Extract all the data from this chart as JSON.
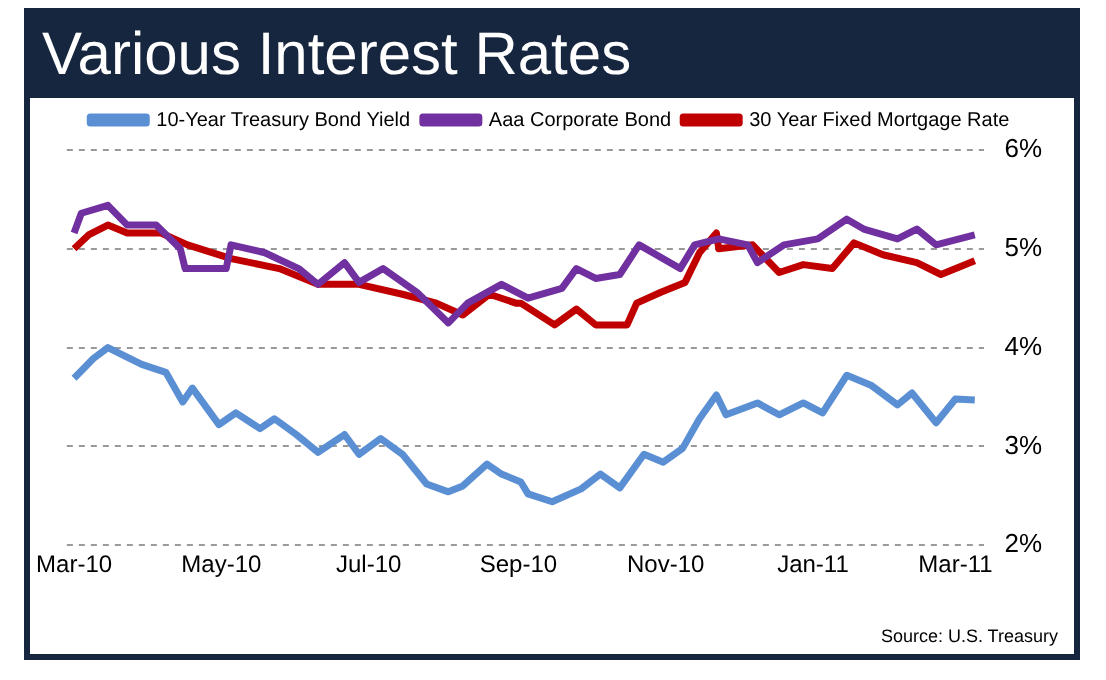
{
  "chart_data": {
    "type": "line",
    "title": "Various Interest Rates",
    "series": [
      {
        "name": "10-Year Treasury Bond Yield",
        "color": "#5b8fd4",
        "x": [
          "2010-03-01",
          "2010-03-09",
          "2010-03-15",
          "2010-03-29",
          "2010-04-08",
          "2010-04-15",
          "2010-04-19",
          "2010-04-30",
          "2010-05-07",
          "2010-05-17",
          "2010-05-23",
          "2010-06-01",
          "2010-06-10",
          "2010-06-21",
          "2010-06-27",
          "2010-07-06",
          "2010-07-15",
          "2010-07-25",
          "2010-08-03",
          "2010-08-09",
          "2010-08-19",
          "2010-08-25",
          "2010-09-02",
          "2010-09-05",
          "2010-09-15",
          "2010-09-27",
          "2010-10-05",
          "2010-10-13",
          "2010-10-23",
          "2010-10-31",
          "2010-11-08",
          "2010-11-15",
          "2010-11-22",
          "2010-11-26",
          "2010-12-09",
          "2010-12-18",
          "2010-12-28",
          "2011-01-05",
          "2011-01-15",
          "2011-01-25",
          "2011-02-05",
          "2011-02-11",
          "2011-02-21",
          "2011-03-01",
          "2011-03-09"
        ],
        "values": [
          3.69,
          3.89,
          4.0,
          3.83,
          3.75,
          3.45,
          3.59,
          3.22,
          3.34,
          3.18,
          3.28,
          3.12,
          2.94,
          3.12,
          2.92,
          3.08,
          2.92,
          2.62,
          2.54,
          2.6,
          2.82,
          2.72,
          2.64,
          2.52,
          2.44,
          2.57,
          2.72,
          2.58,
          2.92,
          2.84,
          2.98,
          3.28,
          3.52,
          3.32,
          3.44,
          3.32,
          3.44,
          3.34,
          3.72,
          3.62,
          3.42,
          3.54,
          3.24,
          3.48,
          3.47
        ]
      },
      {
        "name": "Aaa Corporate Bond",
        "color": "#7030a0",
        "x": [
          "2010-03-01",
          "2010-03-04",
          "2010-03-15",
          "2010-03-23",
          "2010-04-04",
          "2010-04-14",
          "2010-04-16",
          "2010-05-03",
          "2010-05-05",
          "2010-05-19",
          "2010-06-02",
          "2010-06-10",
          "2010-06-21",
          "2010-06-27",
          "2010-07-07",
          "2010-07-21",
          "2010-08-03",
          "2010-08-11",
          "2010-08-25",
          "2010-09-05",
          "2010-09-19",
          "2010-09-25",
          "2010-10-03",
          "2010-10-13",
          "2010-10-21",
          "2010-11-07",
          "2010-11-13",
          "2010-11-23",
          "2010-12-05",
          "2010-12-09",
          "2010-12-20",
          "2011-01-03",
          "2011-01-15",
          "2011-01-22",
          "2011-02-05",
          "2011-02-13",
          "2011-02-21",
          "2011-03-09"
        ],
        "values": [
          5.16,
          5.36,
          5.44,
          5.24,
          5.24,
          5.0,
          4.8,
          4.8,
          5.04,
          4.96,
          4.8,
          4.64,
          4.86,
          4.66,
          4.8,
          4.56,
          4.25,
          4.45,
          4.64,
          4.5,
          4.6,
          4.8,
          4.7,
          4.74,
          5.04,
          4.8,
          5.04,
          5.1,
          5.04,
          4.86,
          5.04,
          5.1,
          5.3,
          5.2,
          5.1,
          5.2,
          5.04,
          5.14
        ]
      },
      {
        "name": "30 Year Fixed Mortgage Rate",
        "color": "#c00000",
        "x": [
          "2010-03-01",
          "2010-03-07",
          "2010-03-15",
          "2010-03-23",
          "2010-04-06",
          "2010-04-17",
          "2010-05-05",
          "2010-05-25",
          "2010-06-10",
          "2010-06-27",
          "2010-07-15",
          "2010-07-29",
          "2010-08-09",
          "2010-08-20",
          "2010-08-31",
          "2010-09-02",
          "2010-09-16",
          "2010-09-25",
          "2010-10-03",
          "2010-10-16",
          "2010-10-20",
          "2010-10-30",
          "2010-11-09",
          "2010-11-15",
          "2010-11-22",
          "2010-11-23",
          "2010-12-07",
          "2010-12-18",
          "2010-12-28",
          "2011-01-09",
          "2011-01-18",
          "2011-01-30",
          "2011-02-13",
          "2011-02-23",
          "2011-03-09"
        ],
        "values": [
          5.0,
          5.14,
          5.24,
          5.16,
          5.16,
          5.04,
          4.9,
          4.8,
          4.64,
          4.64,
          4.54,
          4.45,
          4.33,
          4.54,
          4.45,
          4.45,
          4.23,
          4.39,
          4.23,
          4.23,
          4.45,
          4.56,
          4.66,
          4.96,
          5.16,
          5.0,
          5.04,
          4.76,
          4.84,
          4.8,
          5.06,
          4.94,
          4.86,
          4.74,
          4.88
        ]
      }
    ],
    "xlim": [
      "2010-02-26",
      "2011-03-13"
    ],
    "xticks": [
      {
        "value": "2010-03-01",
        "label": "Mar-10"
      },
      {
        "value": "2010-05-01",
        "label": "May-10"
      },
      {
        "value": "2010-07-01",
        "label": "Jul-10"
      },
      {
        "value": "2010-09-01",
        "label": "Sep-10"
      },
      {
        "value": "2010-11-01",
        "label": "Nov-10"
      },
      {
        "value": "2011-01-01",
        "label": "Jan-11"
      },
      {
        "value": "2011-03-01",
        "label": "Mar-11"
      }
    ],
    "ylim": [
      2,
      6
    ],
    "yticks": [
      {
        "value": 2,
        "label": "2%"
      },
      {
        "value": 3,
        "label": "3%"
      },
      {
        "value": 4,
        "label": "4%"
      },
      {
        "value": 5,
        "label": "5%"
      },
      {
        "value": 6,
        "label": "6%"
      }
    ],
    "grid": "y",
    "legend": "top",
    "marker": "none",
    "line_style": "solid",
    "annotations": [
      "Source:  U.S. Treasury"
    ]
  }
}
